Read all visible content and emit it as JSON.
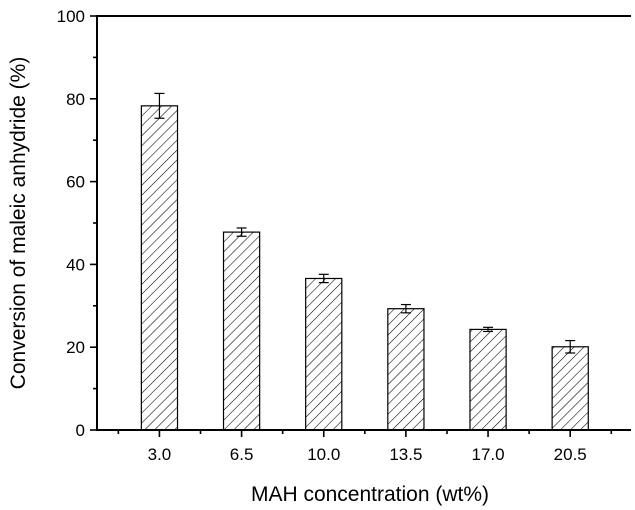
{
  "chart_data": {
    "type": "bar",
    "categories": [
      "3.0",
      "6.5",
      "10.0",
      "13.5",
      "17.0",
      "20.5"
    ],
    "values": [
      78.3,
      47.8,
      36.6,
      29.3,
      24.3,
      20.1
    ],
    "errors": [
      3.0,
      1.0,
      1.0,
      1.0,
      0.5,
      1.5
    ],
    "xlabel": "MAH concentration (wt%)",
    "ylabel": "Conversion of maleic anhydride (%)",
    "ylim": [
      0,
      100
    ],
    "yticks": [
      "0",
      "20",
      "40",
      "60",
      "80",
      "100"
    ],
    "bar_fill": "hatched",
    "grid": false,
    "colors": {
      "bar_stroke": "#000000",
      "hatch": "#000000",
      "background": "#ffffff"
    }
  }
}
